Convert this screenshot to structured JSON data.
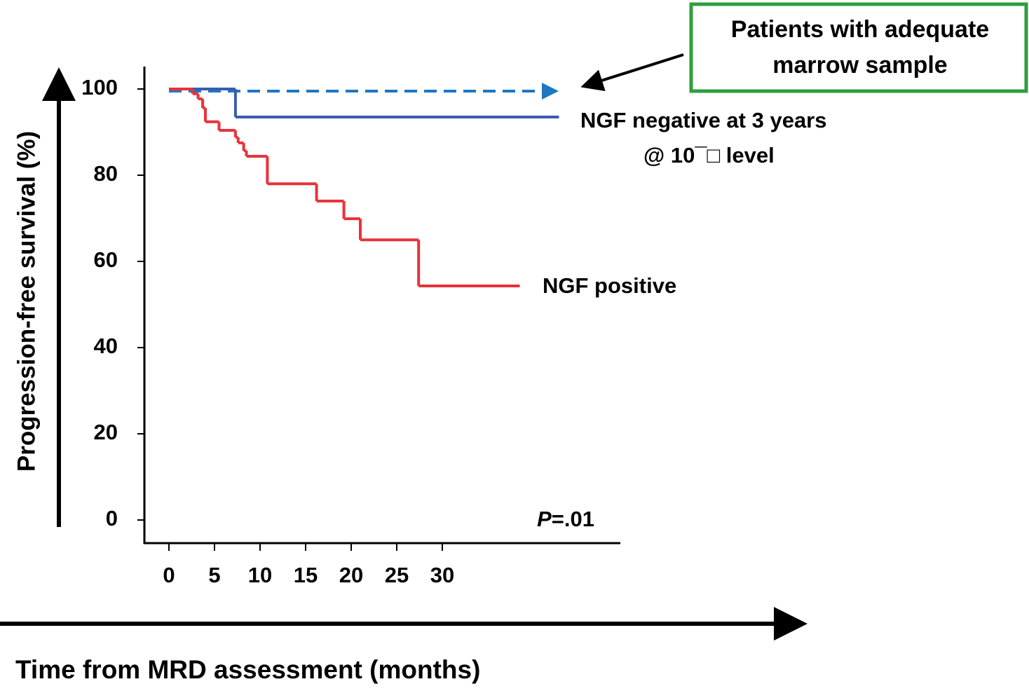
{
  "chart_data": {
    "type": "step",
    "y_label": "Progression-free survival (%)",
    "x_label": "Time from MRD assessment (months)",
    "xlim": [
      0,
      49.5
    ],
    "ylim": [
      0,
      100
    ],
    "xticks": [
      0,
      5,
      10,
      15,
      20,
      25,
      30
    ],
    "yticks": [
      0,
      20,
      40,
      60,
      80,
      100
    ],
    "series": [
      {
        "name": "NGF negative at 3 years",
        "color": "#3a5bb0",
        "x": [
          0,
          7.3,
          42.8
        ],
        "values": [
          100,
          93.5,
          93.5
        ]
      },
      {
        "name": "NGF positive",
        "color": "#e8323a",
        "x": [
          0,
          2.6,
          3.2,
          3.7,
          4.0,
          5.5,
          7.3,
          7.6,
          8.2,
          8.5,
          10.8,
          16.2,
          19.2,
          21.0,
          27.4,
          38.5
        ],
        "values": [
          100,
          98.9,
          97.7,
          95.6,
          92.4,
          90.4,
          88.8,
          87.5,
          85.7,
          84.4,
          78,
          74,
          69.9,
          65,
          54.3,
          54.3
        ]
      }
    ],
    "annotations": {
      "box": [
        "Patients with adequate",
        "marrow sample"
      ],
      "level": "@ 10¯□ level",
      "p_italic": "P",
      "p_rest": "=.01"
    }
  }
}
